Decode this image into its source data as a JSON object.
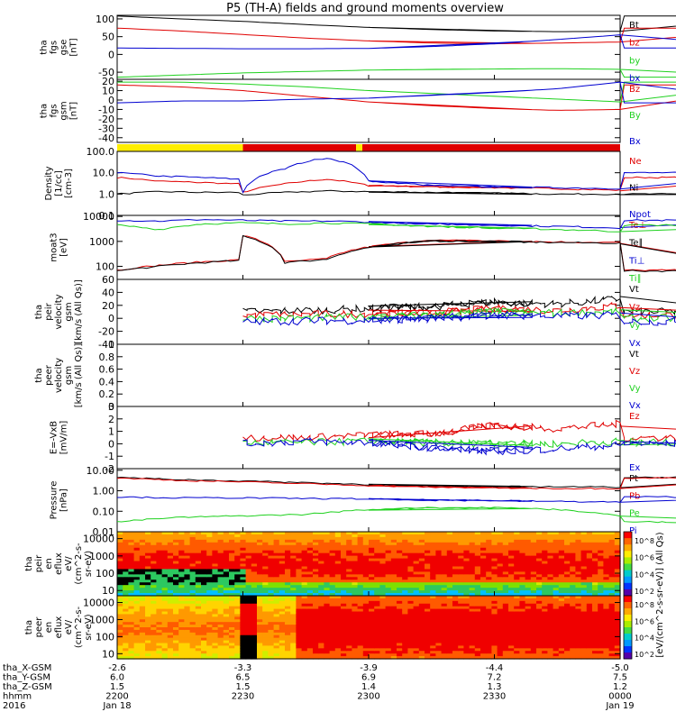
{
  "title": "P5 (TH-A) fields and ground moments overview",
  "colors": {
    "black": "#000000",
    "red": "#e00000",
    "green": "#1fd11f",
    "blue": "#0000d0",
    "yellow": "#ffee00",
    "panel_bg": "#ffffff"
  },
  "chart_data": [
    {
      "type": "line",
      "panel": "fgs_gse",
      "ylabel_lines": [
        "tha",
        "fgs",
        "gse",
        "[nT]"
      ],
      "ylim": [
        -70,
        110
      ],
      "yscale": "linear",
      "yticks": [
        100,
        50,
        0,
        -50
      ],
      "series": [
        {
          "name": "Bt",
          "color": "black",
          "x": [
            2200,
            2215,
            2230,
            2245,
            2300,
            2315,
            2330,
            2345,
            2400
          ],
          "y": [
            108,
            100,
            93,
            84,
            76,
            70,
            66,
            64,
            65
          ]
        },
        {
          "name": "bz",
          "color": "red",
          "x": [
            2200,
            2215,
            2230,
            2245,
            2300,
            2315,
            2330,
            2345,
            2400
          ],
          "y": [
            74,
            66,
            56,
            46,
            38,
            32,
            30,
            32,
            35
          ]
        },
        {
          "name": "by",
          "color": "green",
          "x": [
            2200,
            2215,
            2230,
            2245,
            2300,
            2315,
            2330,
            2345,
            2400
          ],
          "y": [
            -64,
            -58,
            -52,
            -48,
            -44,
            -42,
            -41,
            -40,
            -42
          ]
        },
        {
          "name": "bx",
          "color": "blue",
          "x": [
            2200,
            2215,
            2230,
            2245,
            2300,
            2315,
            2330,
            2345,
            2400
          ],
          "y": [
            18,
            17,
            16,
            16,
            17,
            22,
            30,
            42,
            55
          ]
        }
      ]
    },
    {
      "type": "line",
      "panel": "fgs_gsm",
      "ylabel_lines": [
        "tha",
        "fgs",
        "gsm",
        "[nT]"
      ],
      "ylim": [
        -45,
        22
      ],
      "yscale": "linear",
      "yticks": [
        20,
        10,
        0,
        -10,
        -20,
        -30,
        -40
      ],
      "series": [
        {
          "name": "Bz",
          "color": "red",
          "x": [
            2200,
            2215,
            2230,
            2245,
            2300,
            2315,
            2330,
            2345,
            2400
          ],
          "y": [
            16,
            14,
            10,
            4,
            -2,
            -6,
            -9,
            -11,
            -10
          ]
        },
        {
          "name": "By",
          "color": "green",
          "x": [
            2200,
            2215,
            2230,
            2245,
            2300,
            2315,
            2330,
            2345,
            2400
          ],
          "y": [
            19,
            19,
            17,
            14,
            10,
            7,
            4,
            1,
            -2
          ]
        },
        {
          "name": "Bx",
          "color": "blue",
          "x": [
            2200,
            2215,
            2230,
            2245,
            2300,
            2315,
            2330,
            2345,
            2400
          ],
          "y": [
            -3,
            -1,
            -1,
            1,
            2,
            5,
            8,
            12,
            19
          ]
        }
      ]
    },
    {
      "type": "bar",
      "panel": "mode_bar",
      "segments": [
        {
          "from": 2200,
          "to": 2230,
          "color": "yellow"
        },
        {
          "from": 2230,
          "to": 2257,
          "color": "red"
        },
        {
          "from": 2257,
          "to": 2258.5,
          "color": "yellow"
        },
        {
          "from": 2258.5,
          "to": 2400,
          "color": "red"
        }
      ]
    },
    {
      "type": "line",
      "panel": "density",
      "ylabel_lines": [
        "Density",
        "[1/cc]",
        "[cm-3]"
      ],
      "ylim": [
        0.1,
        100
      ],
      "yscale": "log",
      "yticks": [
        100.0,
        10.0,
        1.0,
        0.1
      ],
      "ytick_labels": [
        "100.0",
        "10.0",
        "1.0",
        "0.1"
      ],
      "series": [
        {
          "name": "Ne",
          "color": "red",
          "x": [
            2200,
            2210,
            2220,
            2229,
            2230,
            2240,
            2250,
            2300,
            2315,
            2330,
            2345,
            2400
          ],
          "y": [
            6,
            4,
            3.5,
            3,
            1.2,
            3,
            5,
            2.5,
            2.2,
            2.0,
            1.8,
            1.5
          ]
        },
        {
          "name": "Ni",
          "color": "black",
          "x": [
            2200,
            2210,
            2220,
            2229,
            2230,
            2240,
            2250,
            2300,
            2315,
            2330,
            2345,
            2400
          ],
          "y": [
            1.0,
            1.3,
            1.2,
            1.2,
            0.9,
            1.2,
            1.4,
            1.3,
            1.2,
            1.1,
            1.0,
            1.0
          ]
        },
        {
          "name": "Npot",
          "color": "blue",
          "x": [
            2200,
            2210,
            2220,
            2229,
            2230,
            2240,
            2250,
            2300,
            2315,
            2330,
            2345,
            2400
          ],
          "y": [
            10,
            7,
            6,
            5,
            1.2,
            15,
            50,
            4,
            2.5,
            2.2,
            2.0,
            1.8
          ]
        }
      ]
    },
    {
      "type": "line",
      "panel": "temperature",
      "ylabel_lines": [
        "moat3",
        "[eV]"
      ],
      "ylim": [
        30,
        11000
      ],
      "yscale": "log",
      "yticks": [
        10000,
        1000,
        100
      ],
      "ytick_labels": [
        "10000",
        "1000",
        "100"
      ],
      "series": [
        {
          "name": "Te⊥",
          "color": "red",
          "x": [
            2200,
            2210,
            2220,
            2229,
            2230,
            2240,
            2250,
            2300,
            2315,
            2330,
            2345,
            2400
          ],
          "y": [
            70,
            110,
            150,
            180,
            1700,
            150,
            200,
            600,
            1100,
            1050,
            950,
            900
          ]
        },
        {
          "name": "Te∥",
          "color": "black",
          "x": [
            2200,
            2210,
            2220,
            2229,
            2230,
            2240,
            2250,
            2300,
            2315,
            2330,
            2345,
            2400
          ],
          "y": [
            65,
            100,
            140,
            170,
            1600,
            140,
            190,
            560,
            1050,
            1000,
            900,
            850
          ]
        },
        {
          "name": "Ti⊥",
          "color": "blue",
          "x": [
            2200,
            2210,
            2220,
            2229,
            2230,
            2240,
            2250,
            2300,
            2315,
            2330,
            2345,
            2400
          ],
          "y": [
            7000,
            6500,
            7500,
            7000,
            7000,
            6500,
            6500,
            6000,
            5000,
            4500,
            4000,
            3500
          ]
        },
        {
          "name": "Ti∥",
          "color": "green",
          "x": [
            2200,
            2210,
            2220,
            2229,
            2230,
            2240,
            2250,
            2300,
            2315,
            2330,
            2345,
            2400
          ],
          "y": [
            4500,
            3000,
            5000,
            5500,
            5500,
            5000,
            5500,
            5000,
            4000,
            3500,
            3000,
            2500
          ]
        }
      ]
    },
    {
      "type": "line",
      "panel": "peir_velocity",
      "ylabel_lines": [
        "tha",
        "peir",
        "velocity",
        "gsm",
        "[km/s (All Qs)]"
      ],
      "ylim": [
        -40,
        60
      ],
      "yscale": "linear",
      "yticks": [
        60,
        40,
        20,
        0,
        -20,
        -40
      ],
      "series": [
        {
          "name": "Vt",
          "color": "black",
          "x": [
            2230,
            2245,
            2300,
            2315,
            2330,
            2345,
            2400
          ],
          "y": [
            10,
            12,
            15,
            18,
            25,
            22,
            30
          ]
        },
        {
          "name": "Vz",
          "color": "red",
          "x": [
            2230,
            2245,
            2300,
            2315,
            2330,
            2345,
            2400
          ],
          "y": [
            5,
            6,
            7,
            8,
            15,
            12,
            20
          ]
        },
        {
          "name": "Vy",
          "color": "green",
          "x": [
            2230,
            2245,
            2300,
            2315,
            2330,
            2345,
            2400
          ],
          "y": [
            0,
            0,
            2,
            5,
            10,
            8,
            10
          ]
        },
        {
          "name": "Vx",
          "color": "blue",
          "x": [
            2230,
            2245,
            2300,
            2315,
            2330,
            2345,
            2400
          ],
          "y": [
            -5,
            -4,
            -3,
            0,
            5,
            3,
            5
          ]
        }
      ]
    },
    {
      "type": "line",
      "panel": "peer_velocity",
      "ylabel_lines": [
        "tha",
        "peer",
        "velocity",
        "gsm",
        "[km/s (All Qs)]"
      ],
      "ylim": [
        0,
        1
      ],
      "yscale": "linear",
      "yticks": [
        1.0,
        0.8,
        0.6,
        0.4,
        0.2,
        0.0
      ],
      "series": [
        {
          "name": "Vt",
          "color": "black",
          "x": [],
          "y": []
        },
        {
          "name": "Vz",
          "color": "red",
          "x": [],
          "y": []
        },
        {
          "name": "Vy",
          "color": "green",
          "x": [],
          "y": []
        },
        {
          "name": "Vx",
          "color": "blue",
          "x": [],
          "y": []
        }
      ]
    },
    {
      "type": "line",
      "panel": "efield",
      "ylabel_lines": [
        "E=-VxB",
        "[mV/m]"
      ],
      "ylim": [
        -2,
        3
      ],
      "yscale": "linear",
      "yticks": [
        3,
        2,
        1,
        0,
        -1,
        -2
      ],
      "series": [
        {
          "name": "Ez",
          "color": "red",
          "x": [
            2230,
            2245,
            2300,
            2315,
            2330,
            2345,
            2400
          ],
          "y": [
            0.5,
            0.5,
            0.7,
            0.8,
            1.5,
            1.2,
            1.6
          ]
        },
        {
          "name": "Ey",
          "color": "green",
          "x": [
            2230,
            2245,
            2300,
            2315,
            2330,
            2345,
            2400
          ],
          "y": [
            0.1,
            0.1,
            0.2,
            0.1,
            0.0,
            0.0,
            0.2
          ]
        },
        {
          "name": "Ex",
          "color": "blue",
          "x": [
            2230,
            2245,
            2300,
            2315,
            2330,
            2345,
            2400
          ],
          "y": [
            0.0,
            0.2,
            0.1,
            -0.3,
            -0.6,
            -0.4,
            -0.1
          ]
        }
      ]
    },
    {
      "type": "line",
      "panel": "pressure",
      "ylabel_lines": [
        "Pressure",
        "[nPa]"
      ],
      "ylim": [
        0.01,
        12
      ],
      "yscale": "log",
      "yticks": [
        10.0,
        1.0,
        0.1,
        0.01
      ],
      "ytick_labels": [
        "10.00",
        "1.00",
        "0.10",
        "0.01"
      ],
      "series": [
        {
          "name": "Pt",
          "color": "black",
          "x": [
            2200,
            2215,
            2230,
            2245,
            2300,
            2315,
            2330,
            2345,
            2400
          ],
          "y": [
            4.5,
            3.5,
            3.0,
            2.5,
            2.0,
            1.7,
            1.6,
            1.6,
            1.5
          ]
        },
        {
          "name": "Pb",
          "color": "red",
          "x": [
            2200,
            2215,
            2230,
            2245,
            2300,
            2315,
            2330,
            2345,
            2400
          ],
          "y": [
            4.2,
            3.2,
            2.7,
            2.2,
            1.8,
            1.5,
            1.4,
            1.3,
            1.3
          ]
        },
        {
          "name": "Pe",
          "color": "green",
          "x": [
            2200,
            2215,
            2230,
            2245,
            2300,
            2315,
            2330,
            2345,
            2400
          ],
          "y": [
            0.03,
            0.05,
            0.06,
            0.07,
            0.12,
            0.15,
            0.15,
            0.12,
            0.06
          ]
        },
        {
          "name": "Pi",
          "color": "blue",
          "x": [
            2200,
            2215,
            2230,
            2245,
            2300,
            2315,
            2330,
            2345,
            2400
          ],
          "y": [
            0.5,
            0.45,
            0.45,
            0.42,
            0.4,
            0.35,
            0.33,
            0.3,
            0.28
          ]
        }
      ]
    },
    {
      "type": "heatmap",
      "panel": "peir_spec",
      "ylabel_lines": [
        "tha",
        "peir",
        "en",
        "eflux",
        "eV/",
        "(cm^2-s-",
        "sr-eV)"
      ],
      "ylim": [
        5,
        25000
      ],
      "yscale": "log",
      "yticks": [
        10000,
        1000,
        100,
        10
      ],
      "ytick_labels": [
        "10000",
        "1000",
        "100",
        "10"
      ],
      "colorbar_label": "[eV/(cm^2-s-sr-eV)] (All Qs)",
      "colorbar_ticks": [
        "10^8",
        "10^6",
        "10^4",
        "10^2"
      ]
    },
    {
      "type": "heatmap",
      "panel": "peer_spec",
      "ylabel_lines": [
        "tha",
        "peer",
        "en",
        "eflux",
        "eV/",
        "(cm^2-s-",
        "sr-eV)"
      ],
      "ylim": [
        5,
        25000
      ],
      "yscale": "log",
      "yticks": [
        10000,
        1000,
        100,
        10
      ],
      "ytick_labels": [
        "10000",
        "1000",
        "100",
        "10"
      ],
      "colorbar_label": "[eV/(cm^2-s-sr-eV)] (All Qs)",
      "colorbar_ticks": [
        "10^8",
        "10^6",
        "10^4",
        "10^2"
      ]
    }
  ],
  "x_axis": {
    "xlim": [
      2200,
      2400
    ],
    "row_labels": [
      "tha_X-GSM",
      "tha_Y-GSM",
      "tha_Z-GSM",
      "hhmm",
      "2016"
    ],
    "ticks": [
      {
        "x": 2200,
        "rows": [
          "-2.6",
          "6.0",
          "1.5",
          "2200",
          "Jan 18"
        ]
      },
      {
        "x": 2230,
        "rows": [
          "-3.3",
          "6.5",
          "1.5",
          "2230",
          ""
        ]
      },
      {
        "x": 2300,
        "rows": [
          "-3.9",
          "6.9",
          "1.4",
          "2300",
          ""
        ]
      },
      {
        "x": 2330,
        "rows": [
          "-4.4",
          "7.2",
          "1.3",
          "2330",
          ""
        ]
      },
      {
        "x": 2400,
        "rows": [
          "-5.0",
          "7.5",
          "1.2",
          "0000",
          "Jan 19"
        ]
      }
    ]
  }
}
